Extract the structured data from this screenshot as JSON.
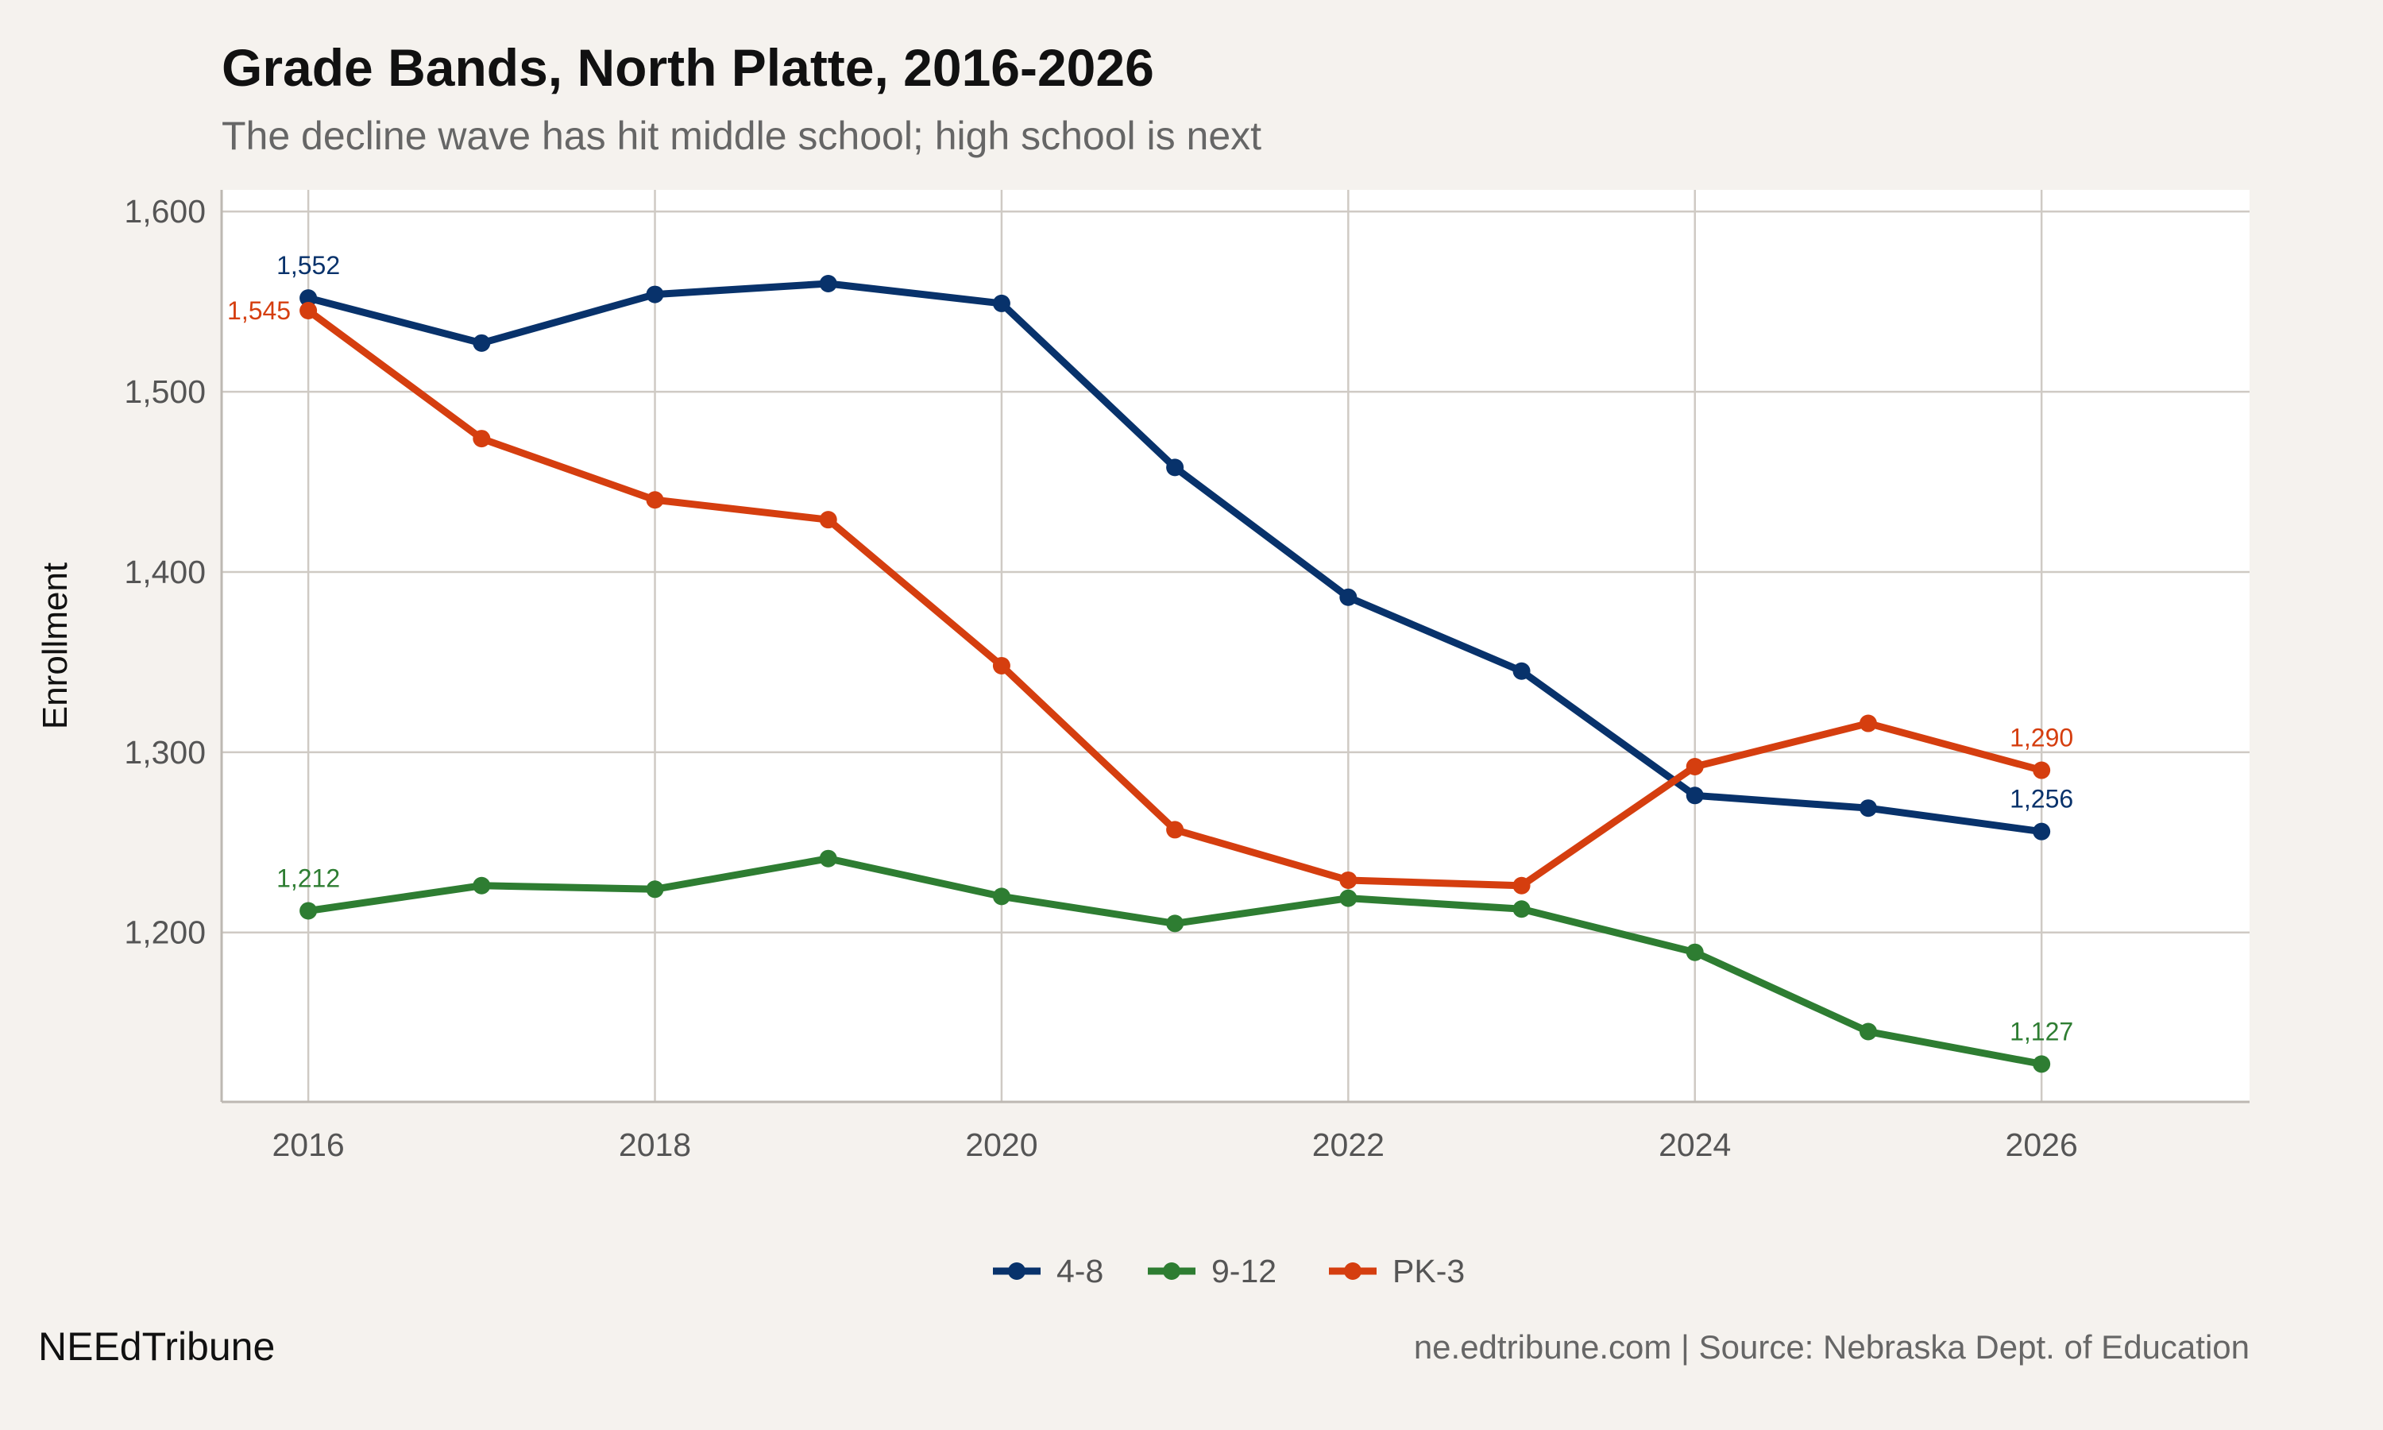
{
  "chart_data": {
    "type": "line",
    "title": "Grade Bands, North Platte, 2016-2026",
    "subtitle": "The decline wave has hit middle school; high school is next",
    "xlabel": "",
    "ylabel": "Enrollment",
    "x": [
      2016,
      2017,
      2018,
      2019,
      2020,
      2021,
      2022,
      2023,
      2024,
      2025,
      2026
    ],
    "xlim": [
      2015.5,
      2027.2
    ],
    "ylim": [
      1106,
      1612
    ],
    "xticks": [
      2016,
      2018,
      2020,
      2022,
      2024,
      2026
    ],
    "xtick_labels": [
      "2016",
      "2018",
      "2020",
      "2022",
      "2024",
      "2026"
    ],
    "yticks": [
      1200,
      1300,
      1400,
      1500,
      1600
    ],
    "ytick_labels": [
      "1,200",
      "1,300",
      "1,400",
      "1,500",
      "1,600"
    ],
    "grid": true,
    "legend_position": "bottom",
    "series": [
      {
        "name": "4-8",
        "color": "#08326b",
        "values": [
          1552,
          1527,
          1554,
          1560,
          1549,
          1458,
          1386,
          1345,
          1276,
          1269,
          1256
        ],
        "labels": {
          "first": "1,552",
          "last": "1,256"
        }
      },
      {
        "name": "9-12",
        "color": "#2e7d32",
        "values": [
          1212,
          1226,
          1224,
          1241,
          1220,
          1205,
          1219,
          1213,
          1189,
          1145,
          1127
        ],
        "labels": {
          "first": "1,212",
          "last": "1,127"
        }
      },
      {
        "name": "PK-3",
        "color": "#d53e0f",
        "values": [
          1545,
          1474,
          1440,
          1429,
          1348,
          1257,
          1229,
          1226,
          1292,
          1316,
          1290
        ],
        "labels": {
          "first": "1,545",
          "last": "1,290"
        }
      }
    ]
  },
  "footer": {
    "brand": "NEEdTribune",
    "source": "ne.edtribune.com | Source: Nebraska Dept. of Education"
  }
}
